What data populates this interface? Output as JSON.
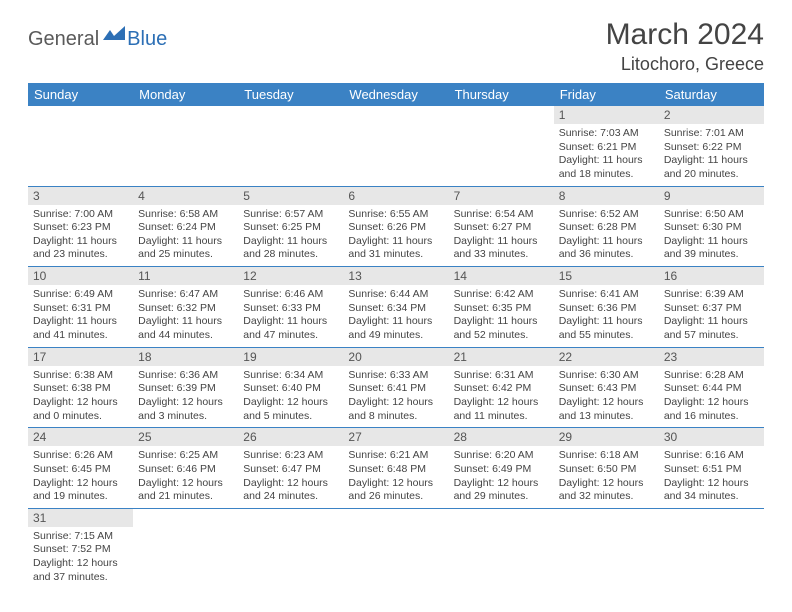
{
  "logo": {
    "general": "General",
    "blue": "Blue"
  },
  "title": "March 2024",
  "location": "Litochoro, Greece",
  "colors": {
    "header_bg": "#3b82c4",
    "header_text": "#ffffff",
    "daynum_bg": "#e7e7e7",
    "row_border": "#3b82c4",
    "logo_gray": "#5a5a5a",
    "logo_blue": "#2c6fb5"
  },
  "weekdays": [
    "Sunday",
    "Monday",
    "Tuesday",
    "Wednesday",
    "Thursday",
    "Friday",
    "Saturday"
  ],
  "weeks": [
    [
      null,
      null,
      null,
      null,
      null,
      {
        "n": "1",
        "sr": "Sunrise: 7:03 AM",
        "ss": "Sunset: 6:21 PM",
        "d1": "Daylight: 11 hours",
        "d2": "and 18 minutes."
      },
      {
        "n": "2",
        "sr": "Sunrise: 7:01 AM",
        "ss": "Sunset: 6:22 PM",
        "d1": "Daylight: 11 hours",
        "d2": "and 20 minutes."
      }
    ],
    [
      {
        "n": "3",
        "sr": "Sunrise: 7:00 AM",
        "ss": "Sunset: 6:23 PM",
        "d1": "Daylight: 11 hours",
        "d2": "and 23 minutes."
      },
      {
        "n": "4",
        "sr": "Sunrise: 6:58 AM",
        "ss": "Sunset: 6:24 PM",
        "d1": "Daylight: 11 hours",
        "d2": "and 25 minutes."
      },
      {
        "n": "5",
        "sr": "Sunrise: 6:57 AM",
        "ss": "Sunset: 6:25 PM",
        "d1": "Daylight: 11 hours",
        "d2": "and 28 minutes."
      },
      {
        "n": "6",
        "sr": "Sunrise: 6:55 AM",
        "ss": "Sunset: 6:26 PM",
        "d1": "Daylight: 11 hours",
        "d2": "and 31 minutes."
      },
      {
        "n": "7",
        "sr": "Sunrise: 6:54 AM",
        "ss": "Sunset: 6:27 PM",
        "d1": "Daylight: 11 hours",
        "d2": "and 33 minutes."
      },
      {
        "n": "8",
        "sr": "Sunrise: 6:52 AM",
        "ss": "Sunset: 6:28 PM",
        "d1": "Daylight: 11 hours",
        "d2": "and 36 minutes."
      },
      {
        "n": "9",
        "sr": "Sunrise: 6:50 AM",
        "ss": "Sunset: 6:30 PM",
        "d1": "Daylight: 11 hours",
        "d2": "and 39 minutes."
      }
    ],
    [
      {
        "n": "10",
        "sr": "Sunrise: 6:49 AM",
        "ss": "Sunset: 6:31 PM",
        "d1": "Daylight: 11 hours",
        "d2": "and 41 minutes."
      },
      {
        "n": "11",
        "sr": "Sunrise: 6:47 AM",
        "ss": "Sunset: 6:32 PM",
        "d1": "Daylight: 11 hours",
        "d2": "and 44 minutes."
      },
      {
        "n": "12",
        "sr": "Sunrise: 6:46 AM",
        "ss": "Sunset: 6:33 PM",
        "d1": "Daylight: 11 hours",
        "d2": "and 47 minutes."
      },
      {
        "n": "13",
        "sr": "Sunrise: 6:44 AM",
        "ss": "Sunset: 6:34 PM",
        "d1": "Daylight: 11 hours",
        "d2": "and 49 minutes."
      },
      {
        "n": "14",
        "sr": "Sunrise: 6:42 AM",
        "ss": "Sunset: 6:35 PM",
        "d1": "Daylight: 11 hours",
        "d2": "and 52 minutes."
      },
      {
        "n": "15",
        "sr": "Sunrise: 6:41 AM",
        "ss": "Sunset: 6:36 PM",
        "d1": "Daylight: 11 hours",
        "d2": "and 55 minutes."
      },
      {
        "n": "16",
        "sr": "Sunrise: 6:39 AM",
        "ss": "Sunset: 6:37 PM",
        "d1": "Daylight: 11 hours",
        "d2": "and 57 minutes."
      }
    ],
    [
      {
        "n": "17",
        "sr": "Sunrise: 6:38 AM",
        "ss": "Sunset: 6:38 PM",
        "d1": "Daylight: 12 hours",
        "d2": "and 0 minutes."
      },
      {
        "n": "18",
        "sr": "Sunrise: 6:36 AM",
        "ss": "Sunset: 6:39 PM",
        "d1": "Daylight: 12 hours",
        "d2": "and 3 minutes."
      },
      {
        "n": "19",
        "sr": "Sunrise: 6:34 AM",
        "ss": "Sunset: 6:40 PM",
        "d1": "Daylight: 12 hours",
        "d2": "and 5 minutes."
      },
      {
        "n": "20",
        "sr": "Sunrise: 6:33 AM",
        "ss": "Sunset: 6:41 PM",
        "d1": "Daylight: 12 hours",
        "d2": "and 8 minutes."
      },
      {
        "n": "21",
        "sr": "Sunrise: 6:31 AM",
        "ss": "Sunset: 6:42 PM",
        "d1": "Daylight: 12 hours",
        "d2": "and 11 minutes."
      },
      {
        "n": "22",
        "sr": "Sunrise: 6:30 AM",
        "ss": "Sunset: 6:43 PM",
        "d1": "Daylight: 12 hours",
        "d2": "and 13 minutes."
      },
      {
        "n": "23",
        "sr": "Sunrise: 6:28 AM",
        "ss": "Sunset: 6:44 PM",
        "d1": "Daylight: 12 hours",
        "d2": "and 16 minutes."
      }
    ],
    [
      {
        "n": "24",
        "sr": "Sunrise: 6:26 AM",
        "ss": "Sunset: 6:45 PM",
        "d1": "Daylight: 12 hours",
        "d2": "and 19 minutes."
      },
      {
        "n": "25",
        "sr": "Sunrise: 6:25 AM",
        "ss": "Sunset: 6:46 PM",
        "d1": "Daylight: 12 hours",
        "d2": "and 21 minutes."
      },
      {
        "n": "26",
        "sr": "Sunrise: 6:23 AM",
        "ss": "Sunset: 6:47 PM",
        "d1": "Daylight: 12 hours",
        "d2": "and 24 minutes."
      },
      {
        "n": "27",
        "sr": "Sunrise: 6:21 AM",
        "ss": "Sunset: 6:48 PM",
        "d1": "Daylight: 12 hours",
        "d2": "and 26 minutes."
      },
      {
        "n": "28",
        "sr": "Sunrise: 6:20 AM",
        "ss": "Sunset: 6:49 PM",
        "d1": "Daylight: 12 hours",
        "d2": "and 29 minutes."
      },
      {
        "n": "29",
        "sr": "Sunrise: 6:18 AM",
        "ss": "Sunset: 6:50 PM",
        "d1": "Daylight: 12 hours",
        "d2": "and 32 minutes."
      },
      {
        "n": "30",
        "sr": "Sunrise: 6:16 AM",
        "ss": "Sunset: 6:51 PM",
        "d1": "Daylight: 12 hours",
        "d2": "and 34 minutes."
      }
    ],
    [
      {
        "n": "31",
        "sr": "Sunrise: 7:15 AM",
        "ss": "Sunset: 7:52 PM",
        "d1": "Daylight: 12 hours",
        "d2": "and 37 minutes."
      },
      null,
      null,
      null,
      null,
      null,
      null
    ]
  ]
}
